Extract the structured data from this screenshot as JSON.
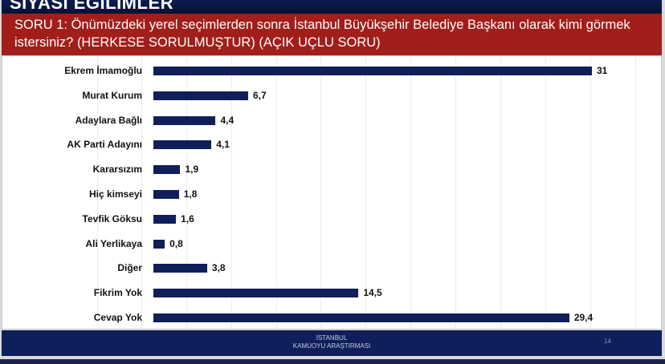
{
  "header": {
    "section_title": "SİYASİ EĞİLİMLER"
  },
  "question": "SORU 1: Önümüzdeki yerel seçimlerden sonra İstanbul Büyükşehir Belediye Başkanı olarak kimi görmek istersiniz? (HERKESE SORULMUŞTUR) (AÇIK UÇLU SORU)",
  "chart_data": {
    "type": "bar",
    "orientation": "horizontal",
    "categories": [
      "Ekrem İmamoğlu",
      "Murat Kurum",
      "Adaylara Bağlı",
      "AK Parti Adayını",
      "Kararsızım",
      "Hiç kimseyi",
      "Tevfik Göksu",
      "Ali Yerlikaya",
      "Diğer",
      "Fikrim Yok",
      "Cevap Yok"
    ],
    "values": [
      31,
      6.7,
      4.4,
      4.1,
      1.9,
      1.8,
      1.6,
      0.8,
      3.8,
      14.5,
      29.4
    ],
    "value_labels": [
      "31",
      "6,7",
      "4,4",
      "4,1",
      "1,9",
      "1,8",
      "1,6",
      "0,8",
      "3,8",
      "14,5",
      "29,4"
    ],
    "bar_color": "#101e5a",
    "xlim": [
      0,
      31
    ],
    "grid": true
  },
  "footer": {
    "line1": "İSTANBUL",
    "line2": "KAMUOYU ARAŞTIRMASI",
    "page": "14"
  }
}
